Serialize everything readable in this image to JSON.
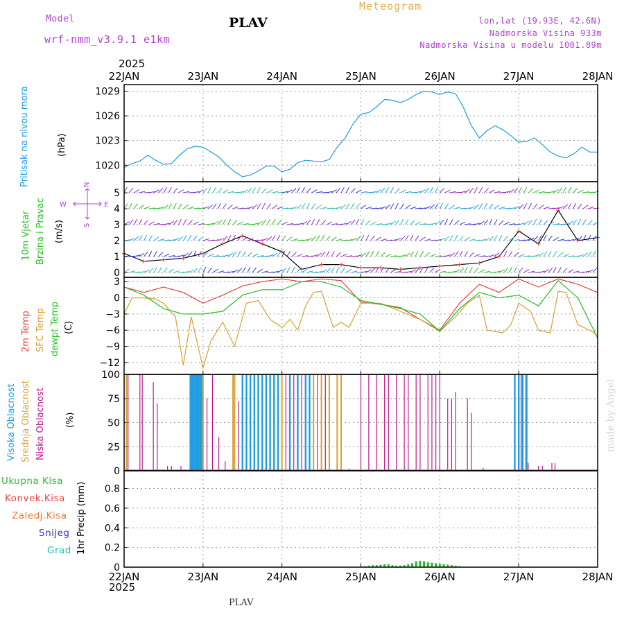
{
  "header": {
    "model_label": "Model",
    "model_value": "wrf-nmm_v3.9.1  e1km",
    "station": "PLAV",
    "meteogram": "Meteogram",
    "lonlat": "lon,lat (19.93E, 42.6N)",
    "elevation": "Nadmorska Visina 933m",
    "model_elevation": "Nadmorska Visina u modelu 1001.89m",
    "year_top": "2025",
    "year_bottom": "2025",
    "footer_station": "PLAV",
    "watermark": "made by Angel"
  },
  "colors": {
    "pressure": "#1e9ee0",
    "temp2m": "#e84040",
    "sfc": "#d9a030",
    "dew": "#22c022",
    "high_cloud": "#1e9ee0",
    "mid_cloud": "#d9a030",
    "low_cloud": "#c01890",
    "total_precip": "#22c022",
    "conv_precip": "#e84040",
    "frozen": "#f07a30",
    "snow": "#3333dd",
    "hail": "#22c0b0",
    "wind_icon": "#b040d0"
  },
  "panel_labels": {
    "pressure": {
      "name": "Pritisak na nivou mora",
      "unit": "(hPa)"
    },
    "wind": {
      "name1": "10m Vjetar",
      "name2": "Brzina i Pravac",
      "unit": "(m/s)",
      "compass_n": "N",
      "compass_w": "W",
      "compass_e": "E",
      "compass_s": "S"
    },
    "temp": {
      "t2m": "2m Temp",
      "sfc": "SFC Temp",
      "dew": "dewpt Temp",
      "unit": "(C)"
    },
    "cloud": {
      "high": "Visoka Oblacnost",
      "mid": "Srednja Oblacnost",
      "low": "Niska Oblacnost",
      "unit": "(%)"
    },
    "precip": {
      "total": "Ukupna Kisa",
      "conv": "Konvek.Kisa",
      "frozen": "Zaledj.Kisa",
      "snow": "Snijeg",
      "hail": "Grad",
      "axis": "1hr Precip (mm)"
    }
  },
  "chart_data": [
    {
      "type": "line",
      "panel": "pressure",
      "x_ticks": [
        "22JAN",
        "23JAN",
        "24JAN",
        "25JAN",
        "26JAN",
        "27JAN",
        "28JAN"
      ],
      "x_range_days": [
        22,
        28
      ],
      "ylim": [
        1018,
        1029.8
      ],
      "y_ticks": [
        "1020",
        "1023",
        "1026",
        "1029"
      ],
      "ylabel": "(hPa)",
      "grid": true,
      "series": [
        {
          "name": "Pritisak na nivou mora",
          "x": [
            22.0,
            22.1,
            22.2,
            22.3,
            22.4,
            22.5,
            22.6,
            22.7,
            22.8,
            22.9,
            23.0,
            23.1,
            23.2,
            23.3,
            23.4,
            23.5,
            23.6,
            23.7,
            23.8,
            23.9,
            24.0,
            24.1,
            24.2,
            24.3,
            24.4,
            24.5,
            24.6,
            24.7,
            24.8,
            24.9,
            25.0,
            25.1,
            25.2,
            25.3,
            25.4,
            25.5,
            25.6,
            25.7,
            25.8,
            25.9,
            26.0,
            26.1,
            26.2,
            26.3,
            26.4,
            26.5,
            26.6,
            26.7,
            26.8,
            26.9,
            27.0,
            27.1,
            27.2,
            27.3,
            27.4,
            27.5,
            27.6,
            27.7,
            27.8,
            27.9,
            28.0
          ],
          "values": [
            1019.7,
            1020.2,
            1020.5,
            1021.2,
            1020.6,
            1020.1,
            1020.2,
            1021.2,
            1022.0,
            1022.3,
            1022.2,
            1021.6,
            1021.0,
            1020.0,
            1019.2,
            1018.6,
            1018.8,
            1019.3,
            1019.9,
            1019.9,
            1019.2,
            1019.5,
            1020.3,
            1020.6,
            1020.5,
            1020.4,
            1020.7,
            1022.2,
            1023.3,
            1025.0,
            1026.2,
            1026.4,
            1027.1,
            1028.0,
            1027.9,
            1027.6,
            1028.0,
            1028.6,
            1029.0,
            1028.9,
            1028.6,
            1028.9,
            1028.7,
            1027.0,
            1024.8,
            1023.3,
            1024.2,
            1024.8,
            1024.3,
            1023.6,
            1022.8,
            1022.9,
            1023.3,
            1022.5,
            1021.6,
            1021.1,
            1020.9,
            1021.4,
            1022.2,
            1021.6,
            1021.6
          ]
        }
      ]
    },
    {
      "type": "line",
      "panel": "wind",
      "x_ticks": [
        "22JAN",
        "23JAN",
        "24JAN",
        "25JAN",
        "26JAN",
        "27JAN",
        "28JAN"
      ],
      "x_range_days": [
        22,
        28
      ],
      "ylim": [
        -0.3,
        5.7
      ],
      "y_ticks": [
        "0",
        "1",
        "2",
        "3",
        "4",
        "5"
      ],
      "ylabel": "(m/s)",
      "grid": true,
      "series": [
        {
          "name": "10m Vjetar",
          "x": [
            22.0,
            22.25,
            22.5,
            22.75,
            23.0,
            23.25,
            23.5,
            23.75,
            24.0,
            24.25,
            24.5,
            24.75,
            25.0,
            25.25,
            25.5,
            25.75,
            26.0,
            26.25,
            26.5,
            26.75,
            27.0,
            27.25,
            27.5,
            27.75,
            28.0
          ],
          "values": [
            1.2,
            0.7,
            0.8,
            0.9,
            1.2,
            1.8,
            2.3,
            1.8,
            1.3,
            0.2,
            0.5,
            0.5,
            0.3,
            0.3,
            0.2,
            0.3,
            0.4,
            0.5,
            0.6,
            1.0,
            2.6,
            1.8,
            3.9,
            2.0,
            2.2
          ]
        }
      ]
    },
    {
      "type": "line",
      "panel": "temperature",
      "x_ticks": [
        "22JAN",
        "23JAN",
        "24JAN",
        "25JAN",
        "26JAN",
        "27JAN",
        "28JAN"
      ],
      "x_range_days": [
        22,
        28
      ],
      "ylim": [
        -14.2,
        3.8
      ],
      "y_ticks": [
        "3",
        "0",
        "−3",
        "−6",
        "−9",
        "−12"
      ],
      "ylabel": "(C)",
      "grid": true,
      "series": [
        {
          "name": "2m Temp",
          "x": [
            22.0,
            22.25,
            22.5,
            22.75,
            23.0,
            23.25,
            23.5,
            23.75,
            24.0,
            24.25,
            24.5,
            24.75,
            25.0,
            25.25,
            25.5,
            25.75,
            26.0,
            26.25,
            26.5,
            26.75,
            27.0,
            27.25,
            27.5,
            27.75,
            28.0
          ],
          "values": [
            2.0,
            1.0,
            2.0,
            1.0,
            -1.0,
            0.5,
            2.2,
            3.0,
            3.5,
            3.0,
            3.5,
            3.2,
            -0.8,
            -1.2,
            -1.8,
            -4.0,
            -6.0,
            -1.0,
            2.5,
            1.0,
            3.5,
            2.0,
            3.5,
            2.5,
            1.0
          ]
        },
        {
          "name": "SFC Temp",
          "x": [
            22.0,
            22.1,
            22.25,
            22.4,
            22.5,
            22.65,
            22.75,
            22.85,
            23.0,
            23.1,
            23.25,
            23.4,
            23.55,
            23.7,
            23.85,
            24.0,
            24.1,
            24.2,
            24.3,
            24.4,
            24.5,
            24.65,
            24.75,
            24.85,
            25.0,
            25.25,
            25.5,
            25.75,
            26.0,
            26.2,
            26.35,
            26.5,
            26.6,
            26.8,
            26.9,
            27.0,
            27.15,
            27.25,
            27.4,
            27.5,
            27.6,
            27.75,
            27.9,
            28.0
          ],
          "values": [
            -3.0,
            0.0,
            0.0,
            -0.2,
            -1.0,
            -3.5,
            -12.5,
            -3.5,
            -13.0,
            -8.0,
            -4.5,
            -9.0,
            -1.0,
            -0.5,
            -4.0,
            -5.5,
            -4.0,
            -6.0,
            -1.5,
            1.0,
            1.2,
            -5.5,
            -4.5,
            -5.5,
            -1.0,
            -1.0,
            -2.5,
            -4.0,
            -6.2,
            -3.5,
            -1.0,
            0.5,
            -6.0,
            -6.5,
            -5.0,
            -1.0,
            -2.5,
            -6.0,
            -6.5,
            1.2,
            1.0,
            -5.0,
            -6.0,
            -7.0
          ]
        },
        {
          "name": "dewpt Temp",
          "x": [
            22.0,
            22.25,
            22.5,
            22.75,
            23.0,
            23.25,
            23.5,
            23.75,
            24.0,
            24.25,
            24.5,
            24.75,
            25.0,
            25.25,
            25.5,
            25.75,
            26.0,
            26.25,
            26.5,
            26.75,
            27.0,
            27.25,
            27.5,
            27.75,
            28.0
          ],
          "values": [
            2.0,
            0.5,
            -2.0,
            -3.0,
            -3.0,
            -2.5,
            0.5,
            1.5,
            1.5,
            3.0,
            3.0,
            2.0,
            -0.5,
            -1.2,
            -2.0,
            -3.0,
            -6.2,
            -2.0,
            1.0,
            0.0,
            0.5,
            -1.5,
            3.2,
            0.0,
            -7.5
          ]
        }
      ]
    },
    {
      "type": "bar",
      "panel": "cloud",
      "x_ticks": [
        "22JAN",
        "23JAN",
        "24JAN",
        "25JAN",
        "26JAN",
        "27JAN",
        "28JAN"
      ],
      "x_range_days": [
        22,
        28
      ],
      "ylim": [
        0,
        100
      ],
      "y_ticks": [
        "0",
        "25",
        "50",
        "75",
        "100"
      ],
      "ylabel": "(%)",
      "grid": true,
      "series": [
        {
          "name": "Niska Oblacnost",
          "x": [
            22.05,
            22.2,
            22.23,
            22.37,
            22.42,
            22.55,
            22.6,
            22.72,
            22.9,
            23.05,
            23.12,
            23.2,
            23.28,
            23.45,
            23.55,
            23.6,
            23.7,
            23.8,
            23.9,
            24.0,
            24.05,
            24.1,
            24.15,
            24.2,
            24.25,
            24.3,
            24.35,
            24.4,
            24.45,
            24.5,
            24.55,
            24.6,
            24.7,
            24.85,
            25.0,
            25.1,
            25.2,
            25.3,
            25.35,
            25.45,
            25.55,
            25.6,
            25.7,
            25.75,
            25.85,
            25.9,
            25.95,
            26.0,
            26.1,
            26.15,
            26.2,
            26.35,
            26.4,
            26.55,
            27.03,
            27.09,
            27.12,
            27.25,
            27.3,
            27.42,
            27.46
          ],
          "values": [
            100,
            100,
            100,
            92,
            70,
            5,
            5,
            5,
            100,
            75,
            100,
            35,
            10,
            72,
            30,
            100,
            100,
            100,
            100,
            100,
            100,
            100,
            100,
            100,
            100,
            100,
            100,
            100,
            100,
            100,
            100,
            100,
            2,
            2,
            100,
            100,
            100,
            100,
            100,
            100,
            100,
            100,
            100,
            100,
            100,
            100,
            100,
            100,
            75,
            75,
            82,
            75,
            60,
            3,
            100,
            100,
            8,
            5,
            5,
            8,
            8
          ]
        },
        {
          "name": "Srednja Oblacnost",
          "x": [
            22.03,
            22.85,
            22.92,
            23.0,
            23.38,
            23.4,
            23.5,
            23.6,
            23.7,
            23.8,
            23.9,
            24.0,
            24.1,
            24.2,
            24.3,
            24.4,
            24.5,
            24.6,
            24.7,
            24.75,
            27.0,
            27.1
          ],
          "values": [
            100,
            100,
            100,
            100,
            100,
            100,
            100,
            100,
            100,
            100,
            100,
            100,
            100,
            100,
            100,
            100,
            100,
            100,
            100,
            100,
            100,
            100
          ]
        },
        {
          "name": "Visoka Oblacnost",
          "x": [
            22.84,
            22.86,
            22.88,
            22.9,
            22.92,
            22.94,
            22.96,
            22.98,
            23.5,
            23.55,
            23.6,
            23.65,
            23.7,
            23.75,
            23.8,
            23.85,
            23.9,
            23.95,
            24.1,
            24.2,
            24.3,
            24.35,
            26.95,
            27.0,
            27.05,
            27.1
          ],
          "values": [
            100,
            100,
            100,
            100,
            100,
            100,
            100,
            100,
            100,
            100,
            100,
            100,
            100,
            100,
            100,
            100,
            100,
            100,
            100,
            100,
            100,
            100,
            100,
            100,
            100,
            100
          ]
        }
      ]
    },
    {
      "type": "bar",
      "panel": "precip",
      "x_ticks": [
        "22JAN",
        "23JAN",
        "24JAN",
        "25JAN",
        "26JAN",
        "27JAN",
        "28JAN"
      ],
      "x_range_days": [
        22,
        28
      ],
      "ylim": [
        0,
        0.98
      ],
      "y_ticks": [
        "0",
        "0.2",
        "0.4",
        "0.6",
        "0.8"
      ],
      "ylabel": "1hr Precip (mm)",
      "grid": true,
      "series": [
        {
          "name": "Ukupna Kisa",
          "x": [
            25.05,
            25.1,
            25.15,
            25.2,
            25.25,
            25.3,
            25.35,
            25.4,
            25.45,
            25.5,
            25.55,
            25.6,
            25.65,
            25.7,
            25.75,
            25.8,
            25.85,
            25.9,
            25.95,
            26.0,
            26.05,
            26.1,
            26.15,
            26.2,
            26.25
          ],
          "values": [
            0.01,
            0.015,
            0.02,
            0.02,
            0.025,
            0.03,
            0.03,
            0.02,
            0.015,
            0.015,
            0.02,
            0.03,
            0.04,
            0.06,
            0.065,
            0.06,
            0.05,
            0.045,
            0.04,
            0.035,
            0.03,
            0.025,
            0.02,
            0.015,
            0.01
          ]
        }
      ]
    }
  ]
}
